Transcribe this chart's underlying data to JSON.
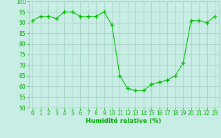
{
  "x": [
    0,
    1,
    2,
    3,
    4,
    5,
    6,
    7,
    8,
    9,
    10,
    11,
    12,
    13,
    14,
    15,
    16,
    17,
    18,
    19,
    20,
    21,
    22,
    23
  ],
  "y": [
    91,
    93,
    93,
    92,
    95,
    95,
    93,
    93,
    93,
    95,
    89,
    65,
    59,
    58,
    58,
    61,
    62,
    63,
    65,
    71,
    91,
    91,
    90,
    93
  ],
  "line_color": "#00bb00",
  "marker": "+",
  "marker_size": 4,
  "bg_color": "#c8ede4",
  "grid_color": "#a0ccc0",
  "xlabel": "Humidité relative (%)",
  "xlabel_color": "#00aa00",
  "xlabel_fontsize": 6.5,
  "tick_color": "#00aa00",
  "tick_fontsize": 5.5,
  "ylim": [
    50,
    100
  ],
  "xlim": [
    -0.5,
    23.5
  ],
  "yticks": [
    50,
    55,
    60,
    65,
    70,
    75,
    80,
    85,
    90,
    95,
    100
  ],
  "xticks": [
    0,
    1,
    2,
    3,
    4,
    5,
    6,
    7,
    8,
    9,
    10,
    11,
    12,
    13,
    14,
    15,
    16,
    17,
    18,
    19,
    20,
    21,
    22,
    23
  ]
}
